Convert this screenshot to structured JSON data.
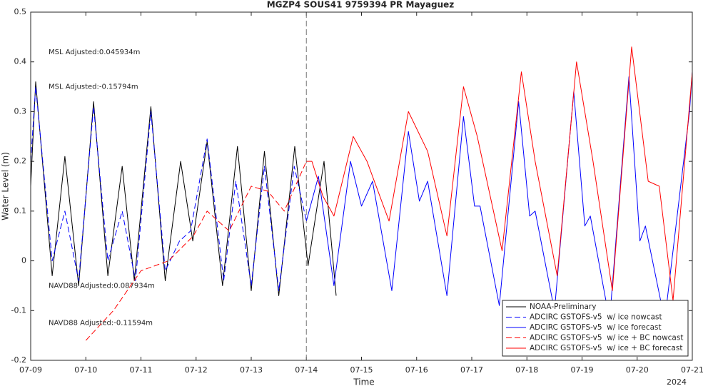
{
  "chart_data": {
    "type": "line",
    "title": "MGZP4 SOUS41 9759394 PR Mayaguez",
    "x_label": "Time",
    "y_label": "Water Level (m)",
    "year_label": "2024",
    "xlim": [
      0,
      12
    ],
    "ylim": [
      -0.2,
      0.5
    ],
    "xticks": [
      {
        "value": 0,
        "label": "07-09"
      },
      {
        "value": 1,
        "label": "07-10"
      },
      {
        "value": 2,
        "label": "07-11"
      },
      {
        "value": 3,
        "label": "07-12"
      },
      {
        "value": 4,
        "label": "07-13"
      },
      {
        "value": 5,
        "label": "07-14"
      },
      {
        "value": 6,
        "label": "07-15"
      },
      {
        "value": 7,
        "label": "07-16"
      },
      {
        "value": 8,
        "label": "07-17"
      },
      {
        "value": 9,
        "label": "07-18"
      },
      {
        "value": 10,
        "label": "07-19"
      },
      {
        "value": 11,
        "label": "07-20"
      },
      {
        "value": 12,
        "label": "07-21"
      }
    ],
    "yticks": [
      -0.2,
      -0.1,
      0,
      0.1,
      0.2,
      0.3,
      0.4,
      0.5
    ],
    "vline": 5,
    "legend": "bottom-right",
    "annotations": [
      {
        "text": "MSL Adjusted:0.045934m",
        "color": "#0000ff"
      },
      {
        "text": "MSL Adjusted:-0.15794m",
        "color": "#ff0000"
      },
      {
        "text": "NAVD88 Adjusted:0.087934m",
        "color": "#0000ff"
      },
      {
        "text": "NAVD88 Adjusted:-0.11594m",
        "color": "#ff0000"
      }
    ],
    "series": [
      {
        "name": "NOAA-Preliminary",
        "color": "#000000",
        "dash": false,
        "x": [
          0,
          0.09,
          0.39,
          0.62,
          0.87,
          1.14,
          1.4,
          1.66,
          1.88,
          2.18,
          2.44,
          2.72,
          2.94,
          3.2,
          3.48,
          3.75,
          4.0,
          4.24,
          4.5,
          4.79,
          5.03,
          5.32,
          5.54
        ],
        "values": [
          0.15,
          0.36,
          -0.03,
          0.21,
          -0.05,
          0.32,
          -0.03,
          0.19,
          -0.04,
          0.31,
          -0.04,
          0.2,
          0.04,
          0.24,
          -0.05,
          0.23,
          -0.06,
          0.22,
          -0.07,
          0.23,
          -0.01,
          0.2,
          -0.07
        ]
      },
      {
        "name": "ADCIRC GSTOFS-v5  w/ ice nowcast",
        "color": "#0000ff",
        "dash": true,
        "x": [
          0,
          0.09,
          0.39,
          0.62,
          0.87,
          1.14,
          1.4,
          1.66,
          1.9,
          2.18,
          2.44,
          2.7,
          2.9,
          3.2,
          3.5,
          3.72,
          4.0,
          4.24,
          4.5,
          4.78,
          5.0
        ],
        "values": [
          0.2,
          0.35,
          0.0,
          0.1,
          -0.04,
          0.31,
          0.0,
          0.1,
          -0.04,
          0.3,
          -0.02,
          0.04,
          0.06,
          0.245,
          -0.04,
          0.16,
          -0.05,
          0.19,
          -0.06,
          0.19,
          0.08
        ]
      },
      {
        "name": "ADCIRC GSTOFS-v5  w/ ice forecast",
        "color": "#0000ff",
        "dash": false,
        "x": [
          5.0,
          5.22,
          5.5,
          5.8,
          6.0,
          6.2,
          6.55,
          6.85,
          7.05,
          7.2,
          7.55,
          7.85,
          8.05,
          8.15,
          8.5,
          8.85,
          9.05,
          9.15,
          9.5,
          9.85,
          10.05,
          10.15,
          10.5,
          10.85,
          11.05,
          11.15,
          11.5,
          11.95,
          12.0
        ],
        "values": [
          0.08,
          0.17,
          -0.05,
          0.2,
          0.11,
          0.16,
          -0.06,
          0.26,
          0.12,
          0.16,
          -0.07,
          0.29,
          0.11,
          0.11,
          -0.09,
          0.32,
          0.09,
          0.1,
          -0.1,
          0.34,
          0.07,
          0.09,
          -0.12,
          0.37,
          0.04,
          0.07,
          -0.12,
          0.3,
          0.38
        ]
      },
      {
        "name": "ADCIRC GSTOFS-v5  w/ ice + BC nowcast",
        "color": "#ff0000",
        "dash": true,
        "x": [
          1.0,
          1.5,
          2.0,
          2.5,
          2.95,
          3.2,
          3.6,
          4.0,
          4.3,
          4.6,
          5.0
        ],
        "values": [
          -0.16,
          -0.1,
          -0.02,
          0.0,
          0.05,
          0.1,
          0.06,
          0.15,
          0.14,
          0.1,
          0.2
        ]
      },
      {
        "name": "ADCIRC GSTOFS-v5  w/ ice + BC forecast",
        "color": "#ff0000",
        "dash": false,
        "x": [
          5.0,
          5.1,
          5.3,
          5.5,
          5.85,
          6.1,
          6.5,
          6.85,
          7.2,
          7.55,
          7.85,
          8.1,
          8.55,
          8.9,
          9.15,
          9.55,
          9.9,
          10.2,
          10.55,
          10.9,
          11.2,
          11.4,
          11.65,
          12.0
        ],
        "values": [
          0.2,
          0.2,
          0.13,
          0.09,
          0.25,
          0.2,
          0.08,
          0.3,
          0.22,
          0.05,
          0.35,
          0.25,
          0.02,
          0.38,
          0.2,
          -0.03,
          0.4,
          0.2,
          -0.06,
          0.43,
          0.16,
          0.15,
          -0.08,
          0.38
        ]
      }
    ]
  }
}
